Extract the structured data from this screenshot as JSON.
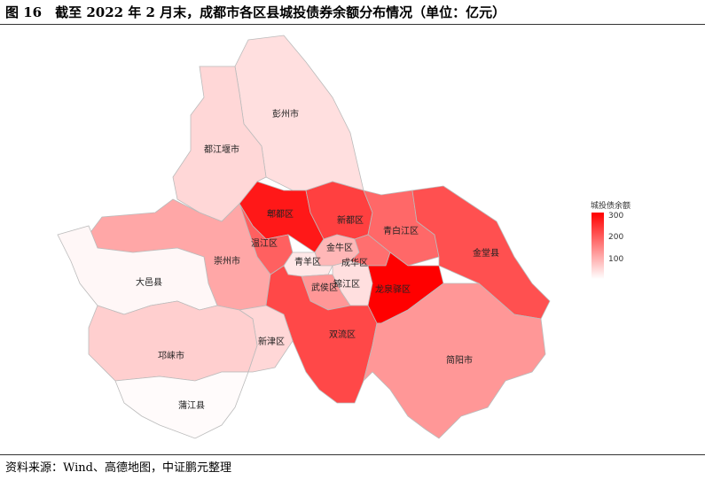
{
  "title": "图 16　截至 2022 年 2 月末，成都市各区县城投债券余额分布情况（单位：亿元）",
  "source": "资料来源：Wind、高德地图，中证鹏元整理",
  "chart_data": {
    "type": "choropleth",
    "title": "",
    "legend": {
      "title": "城投债余额",
      "ticks": [
        "100",
        "200",
        "300"
      ],
      "range": [
        0,
        320
      ],
      "low_color": "#ffffff",
      "high_color": "#ff0000",
      "position": "right"
    },
    "regions": [
      {
        "name": "彭州市",
        "value": 40
      },
      {
        "name": "都江堰市",
        "value": 50
      },
      {
        "name": "郫都区",
        "value": 290
      },
      {
        "name": "新都区",
        "value": 240
      },
      {
        "name": "青白江区",
        "value": 190
      },
      {
        "name": "金堂县",
        "value": 220
      },
      {
        "name": "温江区",
        "value": 200
      },
      {
        "name": "崇州市",
        "value": 110
      },
      {
        "name": "大邑县",
        "value": 10
      },
      {
        "name": "金牛区",
        "value": 90
      },
      {
        "name": "青羊区",
        "value": 30
      },
      {
        "name": "成华区",
        "value": 180
      },
      {
        "name": "锦江区",
        "value": 40
      },
      {
        "name": "武侯区",
        "value": 130
      },
      {
        "name": "龙泉驿区",
        "value": 320
      },
      {
        "name": "双流区",
        "value": 230
      },
      {
        "name": "新津区",
        "value": 50
      },
      {
        "name": "邛崃市",
        "value": 60
      },
      {
        "name": "蒲江县",
        "value": 5
      },
      {
        "name": "简阳市",
        "value": 130
      }
    ]
  }
}
